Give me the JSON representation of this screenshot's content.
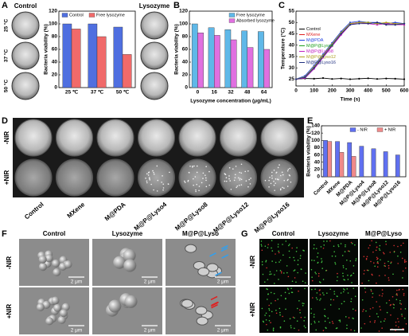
{
  "labels": {
    "A": "A",
    "B": "B",
    "C": "C",
    "D": "D",
    "E": "E",
    "F": "F",
    "G": "G",
    "a_control": "Control",
    "a_lysozyme": "Lysozyme",
    "a_temps": [
      "25 °C",
      "37 °C",
      "50 °C"
    ],
    "d_rows": [
      "-NIR",
      "+NIR"
    ],
    "d_cols": [
      "Control",
      "MXene",
      "M@PDA",
      "M@P@Lyso4",
      "M@P@Lyso8",
      "M@P@Lyso12",
      "M@P@Lyso16"
    ],
    "f_cols": [
      "Control",
      "Lysozyme",
      "M@P@Lyso"
    ],
    "f_rows": [
      "-NIR",
      "+NIR"
    ],
    "scale": "2 μm",
    "g_cols": [
      "Control",
      "Lysozyme",
      "M@P@Lyso"
    ],
    "g_rows": [
      "-NIR",
      "+NIR"
    ]
  },
  "chart_data": [
    {
      "type": "bar",
      "ylabel": "Bacteria viability (%)",
      "categories": [
        "25 ℃",
        "37 ℃",
        "50 ℃"
      ],
      "series": [
        {
          "name": "Control",
          "color": "#4f6fe0",
          "values": [
            100,
            100,
            95
          ]
        },
        {
          "name": "Free lysozyme",
          "color": "#f06a6a",
          "values": [
            92,
            80,
            52
          ]
        }
      ],
      "ylim": [
        0,
        120
      ],
      "yticks": [
        0,
        20,
        40,
        60,
        80,
        100,
        120
      ],
      "legend": "upper left",
      "legend_columns": 2
    },
    {
      "type": "bar",
      "ylabel": "Bacteria viability (%)",
      "xlabel": "Lysozyme concentration (μg/mL)",
      "categories": [
        "0",
        "16",
        "32",
        "48",
        "64"
      ],
      "series": [
        {
          "name": "Free lysozyme",
          "color": "#5fb8e8",
          "values": [
            100,
            94,
            91,
            89,
            88
          ]
        },
        {
          "name": "Absorbed lysozyme",
          "color": "#e070e0",
          "values": [
            86,
            82,
            75,
            63,
            60
          ]
        }
      ],
      "ylim": [
        0,
        120
      ],
      "yticks": [
        0,
        20,
        40,
        60,
        80,
        100,
        120
      ],
      "legend": "upper right",
      "legend_columns": 1
    },
    {
      "type": "line",
      "ylabel": "Temperature (°C)",
      "xlabel": "Time (s)",
      "x": [
        0,
        50,
        100,
        150,
        200,
        250,
        300,
        350,
        400,
        450,
        500,
        550,
        600
      ],
      "series": [
        {
          "name": "Control",
          "color": "#000000",
          "values": [
            25,
            25.3,
            25.2,
            25.5,
            25.1,
            25.3,
            25,
            25.2,
            25.4,
            25.1,
            25.3,
            25.2,
            25
          ]
        },
        {
          "name": "MXene",
          "color": "#e02020",
          "values": [
            25,
            26,
            30,
            35,
            40,
            45,
            49.5,
            50,
            49.5,
            50,
            49,
            49.5,
            49
          ]
        },
        {
          "name": "M@PDA",
          "color": "#2040e0",
          "values": [
            25,
            26.5,
            31,
            36,
            41,
            46,
            50,
            50.5,
            50,
            50,
            49.5,
            50,
            49.5
          ]
        },
        {
          "name": "M@P@Lyso4",
          "color": "#20a020",
          "values": [
            25,
            26,
            30,
            35,
            40,
            45,
            49,
            50,
            50,
            49.5,
            49.5,
            49,
            49.5
          ]
        },
        {
          "name": "M@P@Lyso8",
          "color": "#c020c0",
          "values": [
            25,
            25.5,
            29.5,
            34.5,
            39.5,
            44.5,
            49,
            50,
            49.5,
            49,
            49.5,
            49,
            49
          ]
        },
        {
          "name": "M@P@Lyso12",
          "color": "#b0a020",
          "values": [
            25,
            26,
            30.5,
            35.5,
            40.5,
            45.5,
            49.5,
            50,
            50,
            49.5,
            50,
            49.5,
            49.5
          ]
        },
        {
          "name": "M@P@Lyso16",
          "color": "#203080",
          "values": [
            25,
            25.8,
            30,
            35,
            40,
            45,
            49,
            49.5,
            49.5,
            50,
            49,
            49,
            49.5
          ]
        }
      ],
      "xlim": [
        0,
        600
      ],
      "xticks": [
        0,
        100,
        200,
        300,
        400,
        500,
        600
      ],
      "ylim": [
        22,
        55
      ],
      "yticks": [
        25,
        30,
        35,
        40,
        45,
        50,
        55
      ],
      "legend": "center left",
      "legend_columns": 1
    },
    {
      "type": "bar",
      "ylabel": "Bacteria viability (%)",
      "categories": [
        "Control",
        "MXene",
        "M@PDA",
        "M@P@Lyso4",
        "M@P@Lyso8",
        "M@P@Lyso12",
        "M@P@Lyso16"
      ],
      "series": [
        {
          "name": "- NIR",
          "color": "#6070f0",
          "values": [
            100,
            97,
            94,
            84,
            77,
            69,
            60
          ]
        },
        {
          "name": "+ NIR",
          "color": "#f08a8a",
          "values": [
            97,
            67,
            56,
            null,
            null,
            null,
            null
          ]
        }
      ],
      "ylim": [
        0,
        140
      ],
      "yticks": [
        0,
        20,
        40,
        60,
        80,
        100,
        120,
        140
      ],
      "legend": "upper right",
      "legend_columns": 2,
      "x_label_rotation": 45
    }
  ]
}
